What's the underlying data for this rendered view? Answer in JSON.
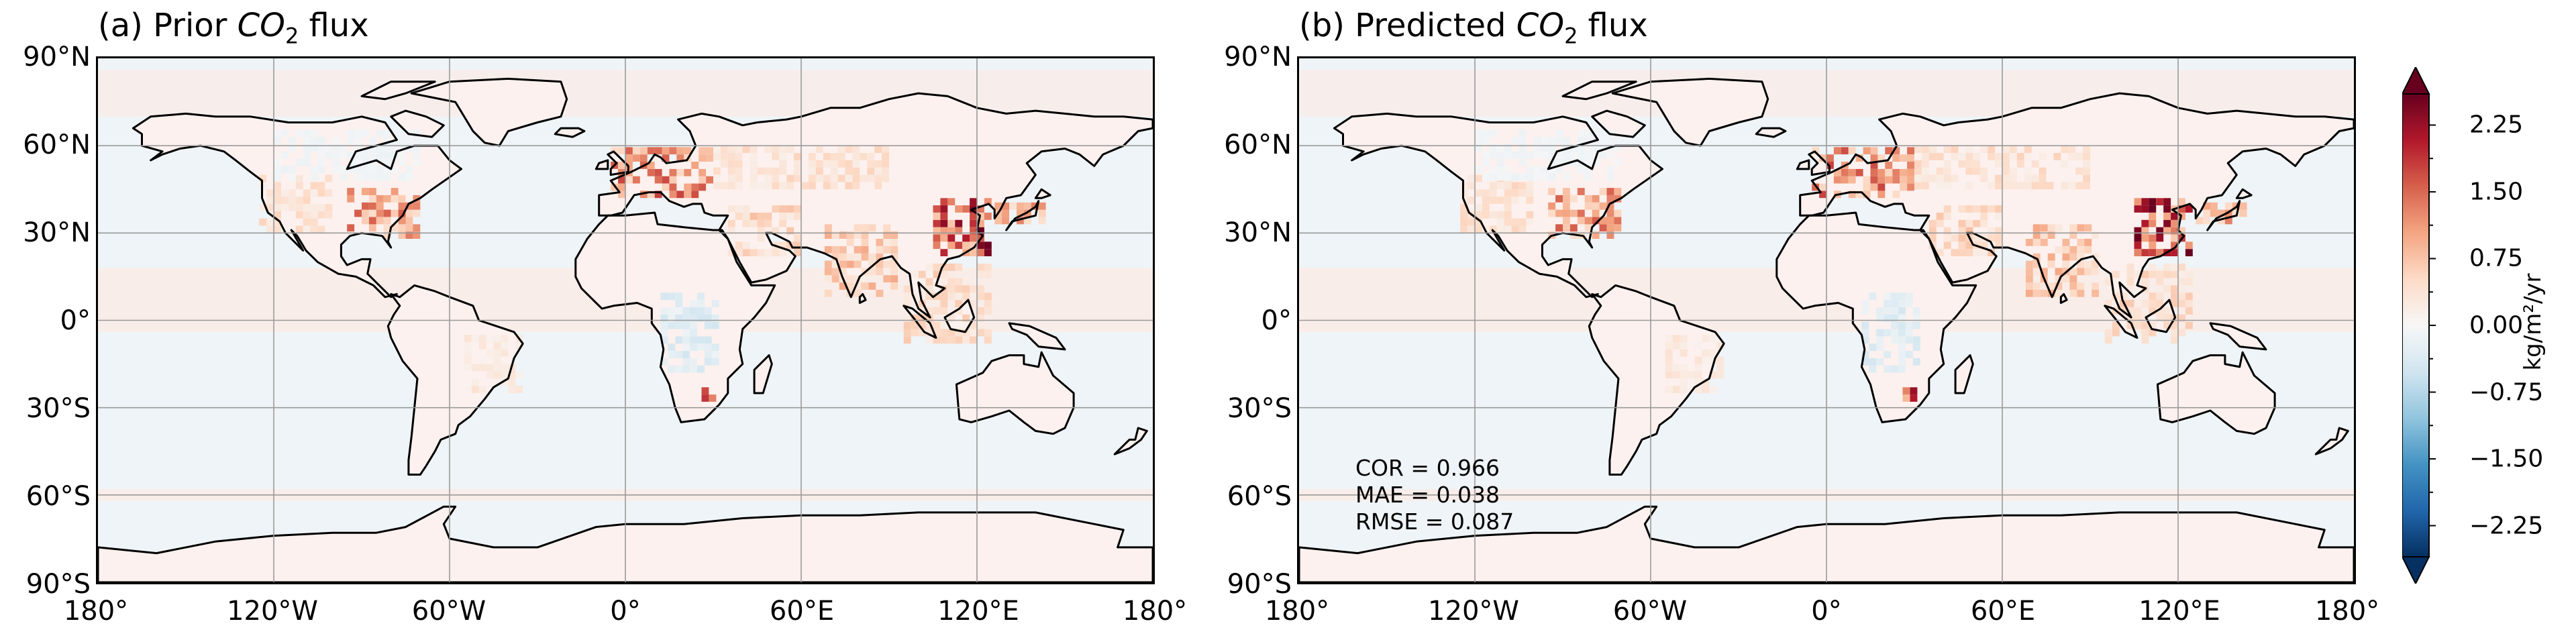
{
  "panels": [
    {
      "prefix": "(a) Prior ",
      "co": "CO",
      "sub": "2",
      "suffix": " flux"
    },
    {
      "prefix": "(b) Predicted ",
      "co": "CO",
      "sub": "2",
      "suffix": " flux"
    }
  ],
  "lat_labels": [
    "90°N",
    "60°N",
    "30°N",
    "0°",
    "30°S",
    "60°S",
    "90°S"
  ],
  "lon_labels": [
    "180°",
    "120°W",
    "60°W",
    "0°",
    "60°E",
    "120°E",
    "180°"
  ],
  "stats": {
    "cor": "COR = 0.966",
    "mae": "MAE = 0.038",
    "rmse": "RMSE = 0.087"
  },
  "colorbar": {
    "label": "kg/m²/yr",
    "ticks": [
      "2.25",
      "1.50",
      "0.75",
      "0.00",
      "−0.75",
      "−1.50",
      "−2.25"
    ],
    "tick_values": [
      2.25,
      1.5,
      0.75,
      0.0,
      -0.75,
      -1.5,
      -2.25
    ],
    "range": [
      -2.6,
      2.6
    ],
    "colors": [
      "#053061",
      "#2166ac",
      "#4393c3",
      "#92c5de",
      "#d1e5f0",
      "#f7f7f7",
      "#fddbc7",
      "#f4a582",
      "#d6604d",
      "#b2182b",
      "#67001f"
    ]
  },
  "map_colors": {
    "ocean": "#eef4f7",
    "land": "#fcf1ee",
    "ocean_band": "#fbebe5",
    "gridline": "#9a9a9a",
    "coast": "#000000"
  },
  "hotspots": [
    {
      "name": "eastern-usa",
      "lon": [
        -95,
        -70
      ],
      "lat": [
        28,
        45
      ],
      "peak": 1.6
    },
    {
      "name": "western-usa",
      "lon": [
        -125,
        -100
      ],
      "lat": [
        30,
        48
      ],
      "peak": 0.6
    },
    {
      "name": "europe",
      "lon": [
        -5,
        30
      ],
      "lat": [
        42,
        58
      ],
      "peak": 1.8
    },
    {
      "name": "russia",
      "lon": [
        30,
        90
      ],
      "lat": [
        45,
        60
      ],
      "peak": 0.6
    },
    {
      "name": "middle-east",
      "lon": [
        35,
        60
      ],
      "lat": [
        22,
        38
      ],
      "peak": 0.8
    },
    {
      "name": "india",
      "lon": [
        68,
        92
      ],
      "lat": [
        8,
        32
      ],
      "peak": 1.0
    },
    {
      "name": "east-china",
      "lon": [
        105,
        125
      ],
      "lat": [
        22,
        42
      ],
      "peak": 2.6
    },
    {
      "name": "japan-korea",
      "lon": [
        126,
        142
      ],
      "lat": [
        33,
        40
      ],
      "peak": 1.4
    },
    {
      "name": "southeast-asia",
      "lon": [
        95,
        125
      ],
      "lat": [
        -8,
        18
      ],
      "peak": 0.7
    },
    {
      "name": "south-africa",
      "lon": [
        26,
        31
      ],
      "lat": [
        -28,
        -25
      ],
      "peak": 2.4
    },
    {
      "name": "brazil",
      "lon": [
        -55,
        -35
      ],
      "lat": [
        -25,
        -5
      ],
      "peak": 0.4
    },
    {
      "name": "central-africa-sink",
      "lon": [
        12,
        32
      ],
      "lat": [
        -18,
        8
      ],
      "peak": -0.5
    },
    {
      "name": "canada-sink",
      "lon": [
        -120,
        -70
      ],
      "lat": [
        48,
        65
      ],
      "peak": -0.15
    }
  ]
}
